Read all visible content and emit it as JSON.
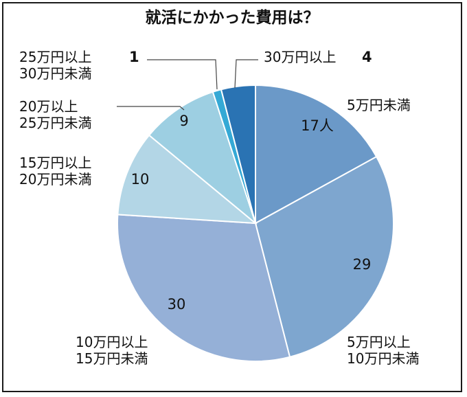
{
  "chart_data": {
    "type": "pie",
    "title": "就活にかかった費用は？",
    "unit": "人",
    "slices": [
      {
        "category": [
          "5万円未満"
        ],
        "value": 17,
        "value_text": "17人",
        "color": "#6b99c8"
      },
      {
        "category": [
          "5万円以上",
          "10万円未満"
        ],
        "value": 29,
        "value_text": "29",
        "color": "#7ea6cf"
      },
      {
        "category": [
          "10万円以上",
          "15万円未満"
        ],
        "value": 30,
        "value_text": "30",
        "color": "#95b0d7"
      },
      {
        "category": [
          "15万円以上",
          "20万円未満"
        ],
        "value": 10,
        "value_text": "10",
        "color": "#b3d6e6"
      },
      {
        "category": [
          "20万以上",
          "25万円未満"
        ],
        "value": 9,
        "value_text": "9",
        "color": "#9dcfe2"
      },
      {
        "category": [
          "25万円以上",
          "30万円未満"
        ],
        "value": 1,
        "value_text": "1",
        "color": "#35a9d5"
      },
      {
        "category": [
          "30万円以上"
        ],
        "value": 4,
        "value_text": "4",
        "color": "#2a73b3"
      }
    ]
  }
}
